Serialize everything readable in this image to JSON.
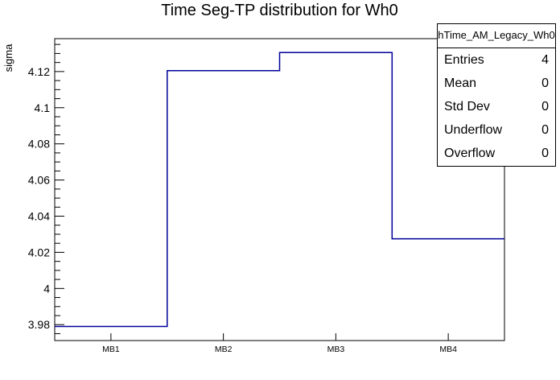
{
  "title": "Time Seg-TP distribution for Wh0",
  "stats_box": {
    "header": "hTime_AM_Legacy_Wh0",
    "rows": [
      {
        "label": "Entries",
        "value": "4"
      },
      {
        "label": "Mean",
        "value": "0"
      },
      {
        "label": "Std Dev",
        "value": "0"
      },
      {
        "label": "Underflow",
        "value": "0"
      },
      {
        "label": "Overflow",
        "value": "0"
      }
    ]
  },
  "chart_data": {
    "type": "bar",
    "style": "step-histogram",
    "title": "Time Seg-TP distribution for Wh0",
    "xlabel": "",
    "ylabel": "sigma",
    "categories": [
      "MB1",
      "MB2",
      "MB3",
      "MB4"
    ],
    "values": [
      3.979,
      4.1205,
      4.1305,
      4.0275
    ],
    "ylim": [
      3.9712,
      4.1382
    ],
    "y_major_ticks": [
      3.98,
      4.0,
      4.02,
      4.04,
      4.06,
      4.08,
      4.1,
      4.12
    ],
    "y_tick_labels": [
      "3.98",
      "4",
      "4.02",
      "4.04",
      "4.06",
      "4.08",
      "4.1",
      "4.12"
    ],
    "y_minor_start": 3.975,
    "y_minor_end": 4.135,
    "y_minor_step": 0.005,
    "grid": false,
    "legend_position": "none",
    "line_color": "#000099",
    "frame_color": "#000000",
    "background_color": "#ffffff"
  }
}
